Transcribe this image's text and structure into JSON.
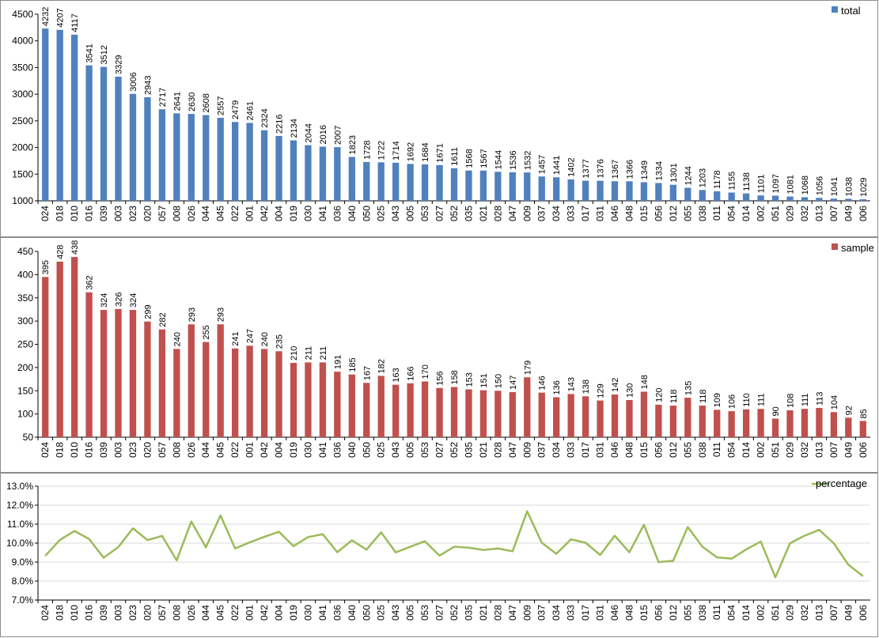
{
  "chart_data": [
    {
      "type": "bar",
      "categories": [
        "024",
        "018",
        "010",
        "016",
        "039",
        "003",
        "023",
        "020",
        "057",
        "008",
        "026",
        "044",
        "045",
        "022",
        "001",
        "042",
        "004",
        "019",
        "030",
        "041",
        "036",
        "040",
        "050",
        "025",
        "043",
        "005",
        "053",
        "027",
        "052",
        "035",
        "021",
        "028",
        "047",
        "009",
        "037",
        "034",
        "033",
        "017",
        "031",
        "046",
        "048",
        "015",
        "056",
        "012",
        "055",
        "038",
        "011",
        "054",
        "014",
        "002",
        "051",
        "029",
        "032",
        "013",
        "007",
        "049",
        "006"
      ],
      "series": [
        {
          "name": "total",
          "color": "#4f81bd",
          "values": [
            4232,
            4207,
            4117,
            3541,
            3512,
            3329,
            3006,
            2943,
            2717,
            2641,
            2630,
            2608,
            2557,
            2479,
            2461,
            2324,
            2216,
            2134,
            2044,
            2016,
            2007,
            1823,
            1728,
            1722,
            1714,
            1692,
            1684,
            1671,
            1611,
            1568,
            1567,
            1544,
            1536,
            1532,
            1457,
            1441,
            1402,
            1377,
            1376,
            1367,
            1366,
            1349,
            1334,
            1301,
            1244,
            1203,
            1178,
            1155,
            1138,
            1101,
            1097,
            1081,
            1068,
            1056,
            1041,
            1038,
            1029
          ]
        }
      ],
      "yticks": [
        "1000",
        "1500",
        "2000",
        "2500",
        "3000",
        "3500",
        "4000",
        "4500"
      ],
      "ylim": [
        1000,
        4500
      ],
      "legend_position": "top-right",
      "grid": false
    },
    {
      "type": "bar",
      "categories": [
        "024",
        "018",
        "010",
        "016",
        "039",
        "003",
        "023",
        "020",
        "057",
        "008",
        "026",
        "044",
        "045",
        "022",
        "001",
        "042",
        "004",
        "019",
        "030",
        "041",
        "036",
        "040",
        "050",
        "025",
        "043",
        "005",
        "053",
        "027",
        "052",
        "035",
        "021",
        "028",
        "047",
        "009",
        "037",
        "034",
        "033",
        "017",
        "031",
        "046",
        "048",
        "015",
        "056",
        "012",
        "055",
        "038",
        "011",
        "054",
        "014",
        "002",
        "051",
        "029",
        "032",
        "013",
        "007",
        "049",
        "006"
      ],
      "series": [
        {
          "name": "sample",
          "color": "#c0504d",
          "values": [
            395,
            428,
            438,
            362,
            324,
            326,
            324,
            299,
            282,
            240,
            293,
            255,
            293,
            241,
            247,
            240,
            235,
            210,
            211,
            211,
            191,
            185,
            167,
            182,
            163,
            166,
            170,
            156,
            158,
            153,
            151,
            150,
            147,
            179,
            146,
            136,
            143,
            138,
            129,
            142,
            130,
            148,
            120,
            118,
            135,
            118,
            109,
            106,
            110,
            111,
            90,
            108,
            111,
            113,
            104,
            92,
            85
          ]
        }
      ],
      "yticks": [
        "50",
        "100",
        "150",
        "200",
        "250",
        "300",
        "350",
        "400",
        "450"
      ],
      "ylim": [
        50,
        450
      ],
      "legend_position": "top-right",
      "grid": false
    },
    {
      "type": "line",
      "categories": [
        "024",
        "018",
        "010",
        "016",
        "039",
        "003",
        "023",
        "020",
        "057",
        "008",
        "026",
        "044",
        "045",
        "022",
        "001",
        "042",
        "004",
        "019",
        "030",
        "041",
        "036",
        "040",
        "050",
        "025",
        "043",
        "005",
        "053",
        "027",
        "052",
        "035",
        "021",
        "028",
        "047",
        "009",
        "037",
        "034",
        "033",
        "017",
        "031",
        "046",
        "048",
        "015",
        "056",
        "012",
        "055",
        "038",
        "011",
        "054",
        "014",
        "002",
        "051",
        "029",
        "032",
        "013",
        "007",
        "049",
        "006"
      ],
      "series": [
        {
          "name": "percentage",
          "color": "#9bbb59",
          "values": [
            9.33,
            10.17,
            10.64,
            10.22,
            9.23,
            9.79,
            10.78,
            10.16,
            10.38,
            9.09,
            11.14,
            9.78,
            11.46,
            9.72,
            10.04,
            10.33,
            10.6,
            9.84,
            10.32,
            10.47,
            9.52,
            10.15,
            9.66,
            10.57,
            9.51,
            9.81,
            10.1,
            9.34,
            9.81,
            9.76,
            9.64,
            9.72,
            9.57,
            11.68,
            10.02,
            9.44,
            10.2,
            10.02,
            9.38,
            10.39,
            9.52,
            10.97,
            9.0,
            9.07,
            10.85,
            9.81,
            9.25,
            9.18,
            9.67,
            10.08,
            8.2,
            9.99,
            10.39,
            10.7,
            9.99,
            8.86,
            8.26
          ]
        }
      ],
      "yticks": [
        "7.0%",
        "8.0%",
        "9.0%",
        "10.0%",
        "11.0%",
        "12.0%",
        "13.0%"
      ],
      "ylim": [
        7.0,
        13.0
      ],
      "legend_position": "top-right",
      "grid": true
    }
  ]
}
